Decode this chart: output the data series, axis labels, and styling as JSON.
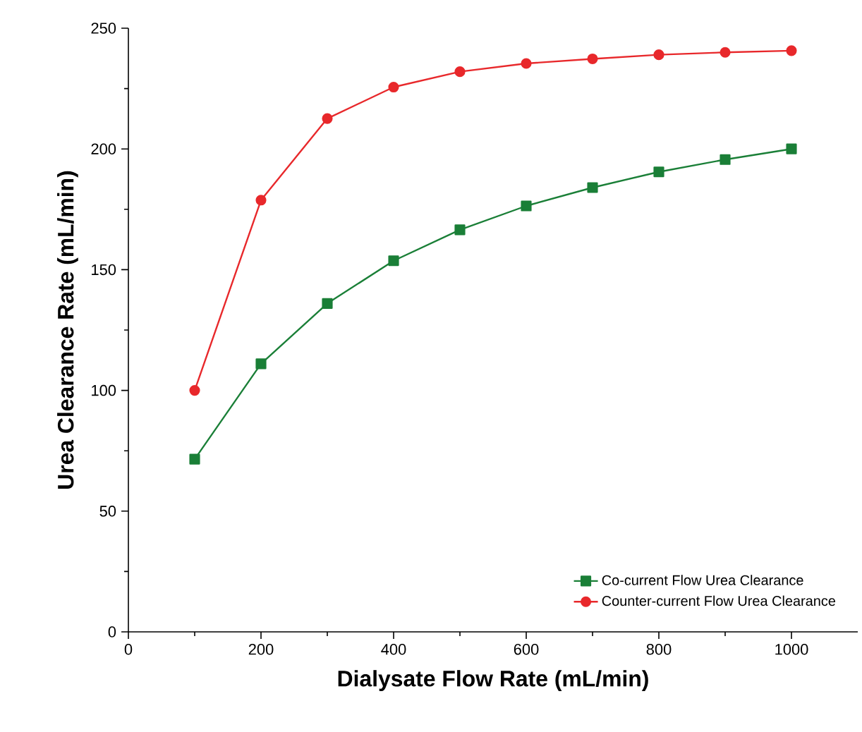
{
  "chart_data": {
    "type": "line",
    "xlabel": "Dialysate Flow Rate (mL/min)",
    "ylabel": "Urea Clearance Rate (mL/min)",
    "x": [
      100,
      200,
      300,
      400,
      500,
      600,
      700,
      800,
      900,
      1000
    ],
    "series": [
      {
        "name": "Co-current Flow Urea Clearance",
        "color": "#1a7f37",
        "marker": "square",
        "values": [
          71.5,
          111,
          136,
          153.7,
          166.5,
          176.4,
          184,
          190.5,
          195.6,
          200
        ]
      },
      {
        "name": "Counter-current Flow Urea Clearance",
        "color": "#e8282b",
        "marker": "circle",
        "values": [
          100,
          178.8,
          212.6,
          225.6,
          232,
          235.4,
          237.3,
          239,
          240,
          240.7
        ]
      }
    ],
    "xlim": [
      0,
      1100
    ],
    "ylim": [
      0,
      250
    ],
    "xticks": [
      0,
      200,
      400,
      600,
      800,
      1000
    ],
    "yticks": [
      0,
      50,
      100,
      150,
      200,
      250
    ],
    "grid": false,
    "legend": "bottom right",
    "line_style": "solid"
  }
}
